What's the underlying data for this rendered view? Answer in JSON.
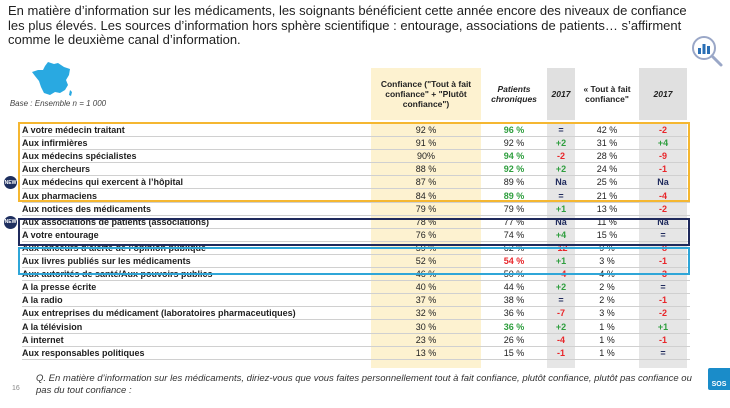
{
  "headline": "En matière d’information sur les médicaments, les soignants bénéficient cette année encore des niveaux de confiance les plus élevés. Les sources d’information hors sphère scientifique : entourage, associations de patients… s’affirment comme le deuxième canal d’information.",
  "base_text": "Base : Ensemble n = 1 000",
  "footnote": "Q. En matière d’information sur les médicaments, diriez-vous que vous faites personnellement tout à fait confiance, plutôt confiance, plutôt pas confiance ou pas du tout confiance :",
  "page_number": "16",
  "new_badge": "NEW",
  "logo_text": "SOS",
  "colors": {
    "positive": "#2e9e3e",
    "negative": "#e8262a",
    "neutral": "#1f2a5c",
    "highlight_orange": "#f5b731",
    "highlight_navy": "#1f2a5c",
    "highlight_cyan": "#2fa6d8"
  },
  "chart_data": {
    "type": "table",
    "columns": [
      "Confiance (\"Tout à fait confiance\" + \"Plutôt confiance\")",
      "Patients chroniques",
      "2017",
      "« Tout à fait confiance\"",
      "2017"
    ],
    "rows": [
      {
        "label": "A votre médecin traitant",
        "confiance": "92 %",
        "chroniques": "96 %",
        "chron_color": "positive",
        "evol1": "=",
        "evol1_color": "neutral",
        "tafc": "42 %",
        "evol2": "-2",
        "evol2_color": "negative"
      },
      {
        "label": "Aux infirmières",
        "confiance": "91 %",
        "chroniques": "92 %",
        "chron_color": "",
        "evol1": "+2",
        "evol1_color": "positive",
        "tafc": "31 %",
        "evol2": "+4",
        "evol2_color": "positive"
      },
      {
        "label": "Aux médecins spécialistes",
        "confiance": "90%",
        "chroniques": "94 %",
        "chron_color": "positive",
        "evol1": "-2",
        "evol1_color": "negative",
        "tafc": "28 %",
        "evol2": "-9",
        "evol2_color": "negative"
      },
      {
        "label": "Aux chercheurs",
        "confiance": "88 %",
        "chroniques": "92 %",
        "chron_color": "positive",
        "evol1": "+2",
        "evol1_color": "positive",
        "tafc": "24 %",
        "evol2": "-1",
        "evol2_color": "negative"
      },
      {
        "label": "Aux médecins qui exercent à l’hôpital",
        "confiance": "87 %",
        "chroniques": "89 %",
        "chron_color": "",
        "evol1": "Na",
        "evol1_color": "neutral",
        "tafc": "25 %",
        "evol2": "Na",
        "evol2_color": "neutral",
        "new": true
      },
      {
        "label": "Aux pharmaciens",
        "confiance": "84 %",
        "chroniques": "89 %",
        "chron_color": "positive",
        "evol1": "=",
        "evol1_color": "neutral",
        "tafc": "21 %",
        "evol2": "-4",
        "evol2_color": "negative"
      },
      {
        "label": "Aux notices des médicaments",
        "confiance": "79 %",
        "chroniques": "79 %",
        "chron_color": "",
        "evol1": "+1",
        "evol1_color": "positive",
        "tafc": "13 %",
        "evol2": "-2",
        "evol2_color": "negative"
      },
      {
        "label": "Aux associations de patients (associations)",
        "confiance": "78 %",
        "chroniques": "77 %",
        "chron_color": "",
        "evol1": "Na",
        "evol1_color": "neutral",
        "tafc": "11 %",
        "evol2": "Na",
        "evol2_color": "neutral",
        "new": true
      },
      {
        "label": "A votre entourage",
        "confiance": "76 %",
        "chroniques": "74 %",
        "chron_color": "",
        "evol1": "+4",
        "evol1_color": "positive",
        "tafc": "15 %",
        "evol2": "=",
        "evol2_color": "neutral"
      },
      {
        "label": "Aux lanceurs d’alerte de l’opinion publique",
        "confiance": "59 %",
        "chroniques": "62 %",
        "chron_color": "",
        "evol1": "-12",
        "evol1_color": "negative",
        "tafc": "9 %",
        "evol2": "-8",
        "evol2_color": "negative"
      },
      {
        "label": "Aux livres publiés sur les médicaments",
        "confiance": "52 %",
        "chroniques": "54 %",
        "chron_color": "negative",
        "evol1": "+1",
        "evol1_color": "positive",
        "tafc": "3 %",
        "evol2": "-1",
        "evol2_color": "negative"
      },
      {
        "label": "Aux autorités de santé/Aux pouvoirs publics",
        "confiance": "46 %",
        "chroniques": "50 %",
        "chron_color": "",
        "evol1": "- 4",
        "evol1_color": "negative",
        "tafc": "4 %",
        "evol2": "-3",
        "evol2_color": "negative"
      },
      {
        "label": "A la presse écrite",
        "confiance": "40 %",
        "chroniques": "44 %",
        "chron_color": "",
        "evol1": "+2",
        "evol1_color": "positive",
        "tafc": "2 %",
        "evol2": "=",
        "evol2_color": "neutral"
      },
      {
        "label": "A la radio",
        "confiance": "37 %",
        "chroniques": "38 %",
        "chron_color": "",
        "evol1": "=",
        "evol1_color": "neutral",
        "tafc": "2 %",
        "evol2": "-1",
        "evol2_color": "negative"
      },
      {
        "label": "Aux entreprises du médicament (laboratoires pharmaceutiques)",
        "confiance": "32 %",
        "chroniques": "36 %",
        "chron_color": "",
        "evol1": "-7",
        "evol1_color": "negative",
        "tafc": "3 %",
        "evol2": "-2",
        "evol2_color": "negative"
      },
      {
        "label": "A la télévision",
        "confiance": "30 %",
        "chroniques": "36 %",
        "chron_color": "positive",
        "evol1": "+2",
        "evol1_color": "positive",
        "tafc": "1 %",
        "evol2": "+1",
        "evol2_color": "positive"
      },
      {
        "label": "A internet",
        "confiance": "23 %",
        "chroniques": "26 %",
        "chron_color": "",
        "evol1": "-4",
        "evol1_color": "negative",
        "tafc": "1 %",
        "evol2": "-1",
        "evol2_color": "negative"
      },
      {
        "label": "Aux responsables politiques",
        "confiance": "13 %",
        "chroniques": "15 %",
        "chron_color": "",
        "evol1": "-1",
        "evol1_color": "negative",
        "tafc": "1 %",
        "evol2": "=",
        "evol2_color": "neutral"
      }
    ]
  }
}
